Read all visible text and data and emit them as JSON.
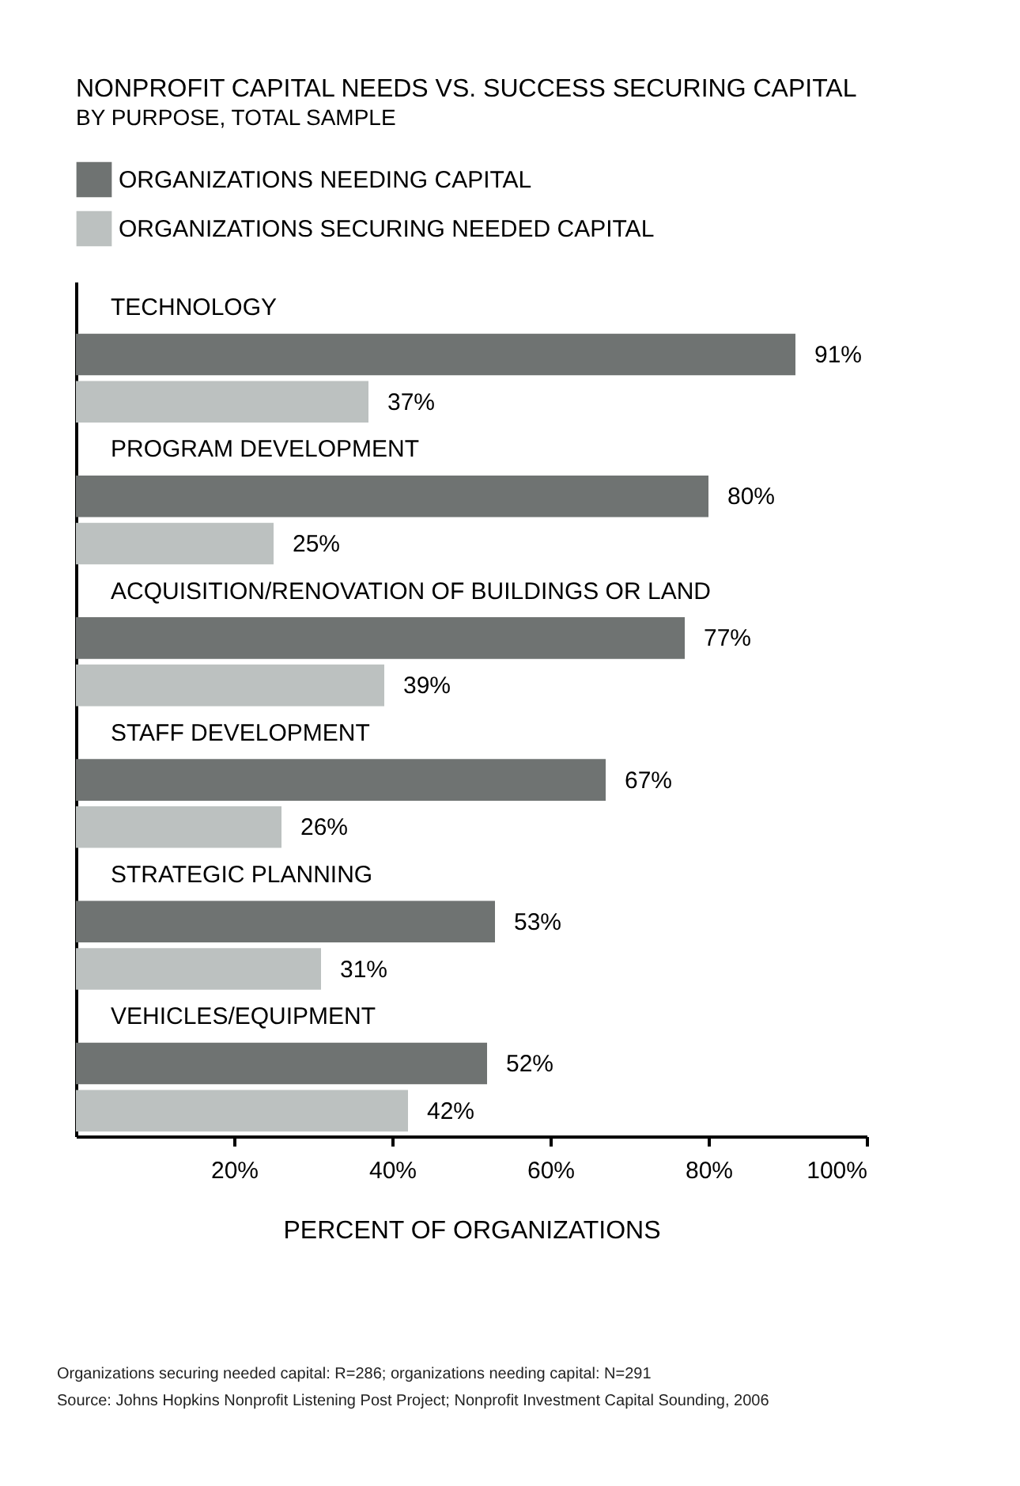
{
  "chart_data": {
    "type": "bar",
    "orientation": "horizontal",
    "title": "NONPROFIT CAPITAL NEEDS VS. SUCCESS SECURING CAPITAL",
    "subtitle": "BY PURPOSE, TOTAL SAMPLE",
    "categories": [
      "TECHNOLOGY",
      "PROGRAM DEVELOPMENT",
      "ACQUISITION/RENOVATION OF BUILDINGS OR LAND",
      "STAFF DEVELOPMENT",
      "STRATEGIC PLANNING",
      "VEHICLES/EQUIPMENT"
    ],
    "series": [
      {
        "name": "ORGANIZATIONS NEEDING CAPITAL",
        "color": "#6f7372",
        "values": [
          91,
          80,
          77,
          67,
          53,
          52
        ],
        "value_labels": [
          "91%",
          "80%",
          "77%",
          "67%",
          "53%",
          "52%"
        ]
      },
      {
        "name": "ORGANIZATIONS SECURING NEEDED CAPITAL",
        "color": "#bcc1c0",
        "values": [
          37,
          25,
          39,
          26,
          31,
          42
        ],
        "value_labels": [
          "37%",
          "25%",
          "39%",
          "26%",
          "31%",
          "42%"
        ]
      }
    ],
    "xlabel": "PERCENT OF ORGANIZATIONS",
    "xlim": [
      0,
      100
    ],
    "xticks": [
      {
        "value": 20,
        "label": "20%"
      },
      {
        "value": 40,
        "label": "40%"
      },
      {
        "value": 60,
        "label": "60%"
      },
      {
        "value": 80,
        "label": "80%"
      },
      {
        "value": 100,
        "label": "100%"
      }
    ],
    "legend": "top left",
    "annotations": [
      "Organizations securing needed capital: R=286; organizations needing capital: N=291",
      "Source: Johns Hopkins Nonprofit Listening Post Project; Nonprofit Investment Capital Sounding, 2006"
    ]
  }
}
